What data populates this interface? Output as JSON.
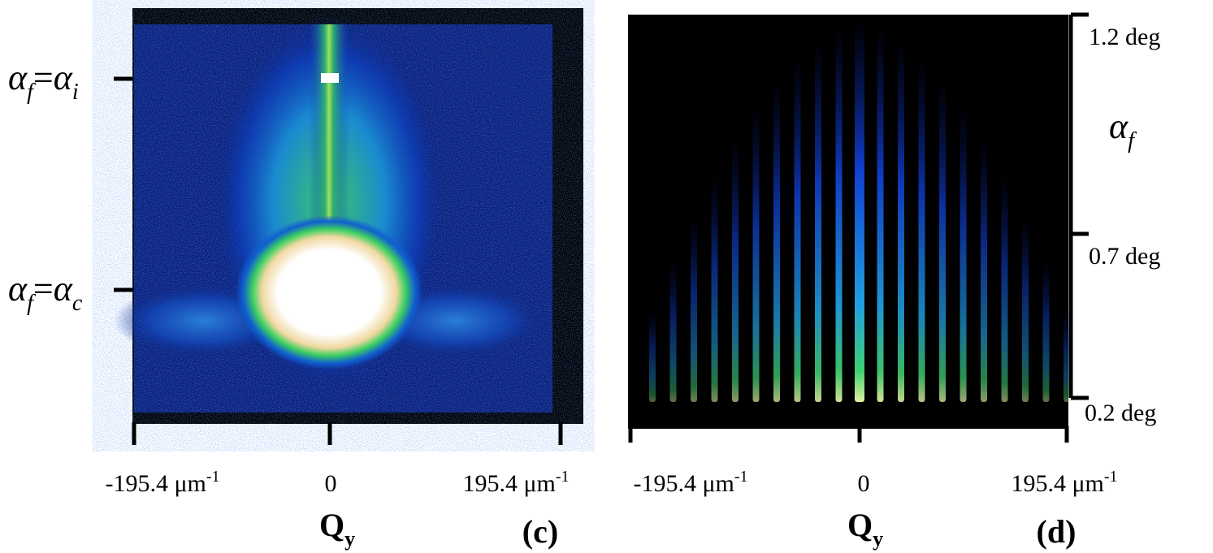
{
  "panels": [
    {
      "label": "(c)",
      "x_axis": {
        "title": {
          "text": "Q",
          "sub": "y"
        },
        "ticks": [
          {
            "text": "-195.4 μm",
            "sup": "-1"
          },
          {
            "text": "0"
          },
          {
            "text": "195.4 μm",
            "sup": "-1"
          }
        ]
      },
      "y_markers": [
        {
          "symbol": "α",
          "sub": "f",
          "eq": "=",
          "symbol2": "α",
          "sub2": "i"
        },
        {
          "symbol": "α",
          "sub": "f",
          "eq": "=",
          "symbol2": "α",
          "sub2": "c"
        }
      ]
    },
    {
      "label": "(d)",
      "x_axis": {
        "title": {
          "text": "Q",
          "sub": "y"
        },
        "ticks": [
          {
            "text": "-195.4 μm",
            "sup": "-1"
          },
          {
            "text": "0"
          },
          {
            "text": "195.4 μm",
            "sup": "-1"
          }
        ]
      },
      "y_axis": {
        "title": {
          "symbol": "α",
          "sub": "f"
        },
        "ticks": [
          "1.2 deg",
          "0.7 deg",
          "0.2 deg"
        ]
      }
    }
  ]
}
